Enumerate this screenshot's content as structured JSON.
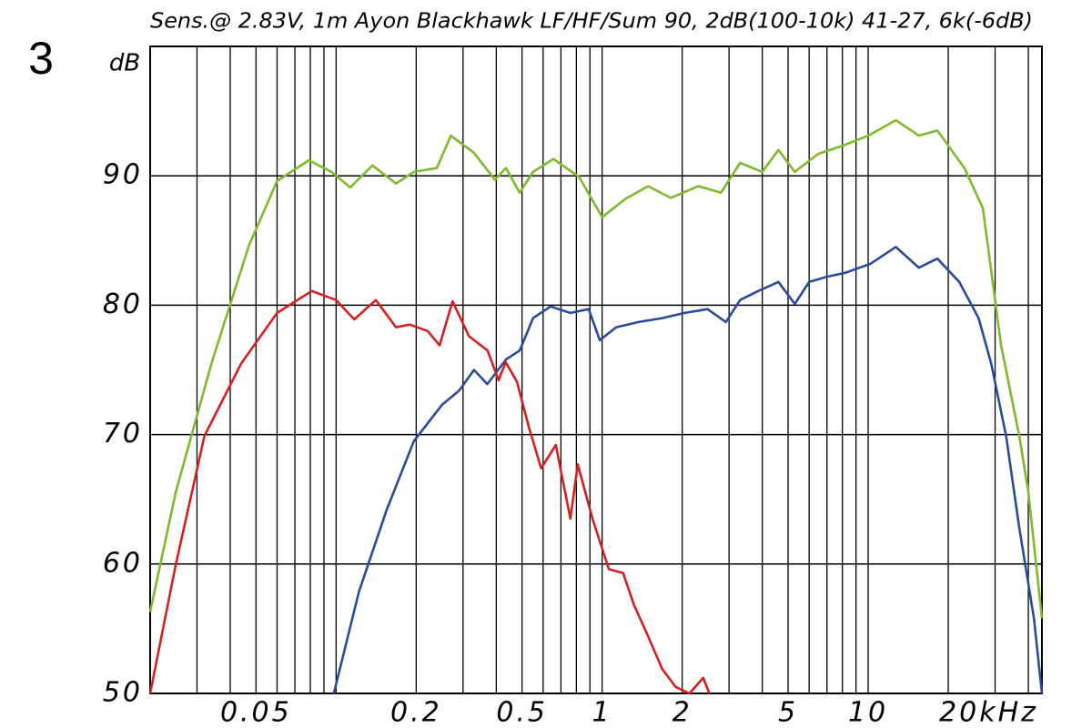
{
  "chart_data": {
    "type": "line",
    "title": "Sens.@ 2.83V, 1m Ayon Blackhawk LF/HF/Sum 90, 2dB(100-10k) 41-27, 6k(-6dB)",
    "annotation": "3",
    "y_label": "dB",
    "xscale": "log",
    "grid": true,
    "xlim": [
      0.02,
      45
    ],
    "ylim": [
      50,
      100
    ],
    "xticks": [
      0.05,
      0.2,
      0.5,
      1,
      2,
      5,
      10,
      {
        "value": 20,
        "label": "20kHz"
      }
    ],
    "x_minor_ticks": [
      0.02,
      0.03,
      0.04,
      0.06,
      0.07,
      0.08,
      0.09,
      0.1,
      0.3,
      0.4,
      0.6,
      0.7,
      0.8,
      0.9,
      3,
      4,
      6,
      7,
      8,
      9,
      30,
      40
    ],
    "yticks": [
      50,
      60,
      70,
      80,
      90
    ],
    "series": [
      {
        "color": "#7cbb2c",
        "x": [
          0.02,
          0.025,
          0.034,
          0.047,
          0.06,
          0.079,
          0.096,
          0.113,
          0.137,
          0.168,
          0.196,
          0.239,
          0.27,
          0.329,
          0.395,
          0.435,
          0.49,
          0.55,
          0.656,
          0.82,
          1.0,
          1.22,
          1.49,
          1.81,
          2.3,
          2.8,
          3.3,
          4.0,
          4.6,
          5.3,
          6.5,
          8.2,
          10,
          12.7,
          15.5,
          18.2,
          23,
          27,
          31.6,
          37,
          40,
          45
        ],
        "values": [
          56.3,
          65.6,
          75.5,
          84.6,
          89.6,
          91.2,
          90.3,
          89.1,
          90.8,
          89.4,
          90.3,
          90.6,
          93.1,
          91.8,
          89.7,
          90.6,
          88.7,
          90.3,
          91.3,
          89.9,
          86.8,
          88.2,
          89.2,
          88.3,
          89.2,
          88.7,
          91.0,
          90.3,
          92.0,
          90.3,
          91.7,
          92.4,
          93.1,
          94.3,
          93.1,
          93.5,
          90.6,
          87.5,
          76.9,
          69.9,
          65.6,
          55.8
        ]
      },
      {
        "color": "#2a4a9a",
        "x": [
          0.098,
          0.122,
          0.155,
          0.196,
          0.25,
          0.29,
          0.33,
          0.37,
          0.435,
          0.49,
          0.55,
          0.64,
          0.76,
          0.89,
          0.98,
          1.13,
          1.37,
          1.68,
          2.04,
          2.49,
          2.92,
          3.3,
          3.86,
          4.6,
          5.3,
          6.0,
          7.0,
          8.2,
          10.2,
          12.7,
          15.5,
          18.2,
          22,
          26,
          29,
          33,
          37,
          42,
          45
        ],
        "values": [
          50,
          57.9,
          64.2,
          69.5,
          72.3,
          73.4,
          75.0,
          73.9,
          75.8,
          76.5,
          79.0,
          79.9,
          79.4,
          79.7,
          77.3,
          78.3,
          78.7,
          79.0,
          79.4,
          79.7,
          78.7,
          80.4,
          81.1,
          81.8,
          80.1,
          81.8,
          82.2,
          82.5,
          83.2,
          84.5,
          82.9,
          83.6,
          81.8,
          79.0,
          75.5,
          69.9,
          62.8,
          55.8,
          50
        ]
      },
      {
        "color": "#d42020",
        "x": [
          0.02,
          0.025,
          0.032,
          0.044,
          0.06,
          0.081,
          0.1,
          0.117,
          0.141,
          0.168,
          0.189,
          0.221,
          0.245,
          0.274,
          0.316,
          0.371,
          0.408,
          0.434,
          0.478,
          0.53,
          0.59,
          0.67,
          0.76,
          0.81,
          0.92,
          1.06,
          1.2,
          1.32,
          1.49,
          1.68,
          1.89,
          2.13,
          2.4,
          2.53
        ],
        "values": [
          50,
          60.0,
          69.9,
          75.5,
          79.4,
          81.1,
          80.4,
          78.9,
          80.4,
          78.3,
          78.5,
          78.0,
          76.9,
          80.3,
          77.6,
          76.5,
          74.2,
          75.6,
          74.1,
          70.6,
          67.4,
          69.2,
          63.5,
          67.7,
          63.5,
          59.6,
          59.3,
          56.8,
          54.4,
          51.9,
          50.5,
          50,
          51.2,
          50
        ]
      }
    ]
  }
}
